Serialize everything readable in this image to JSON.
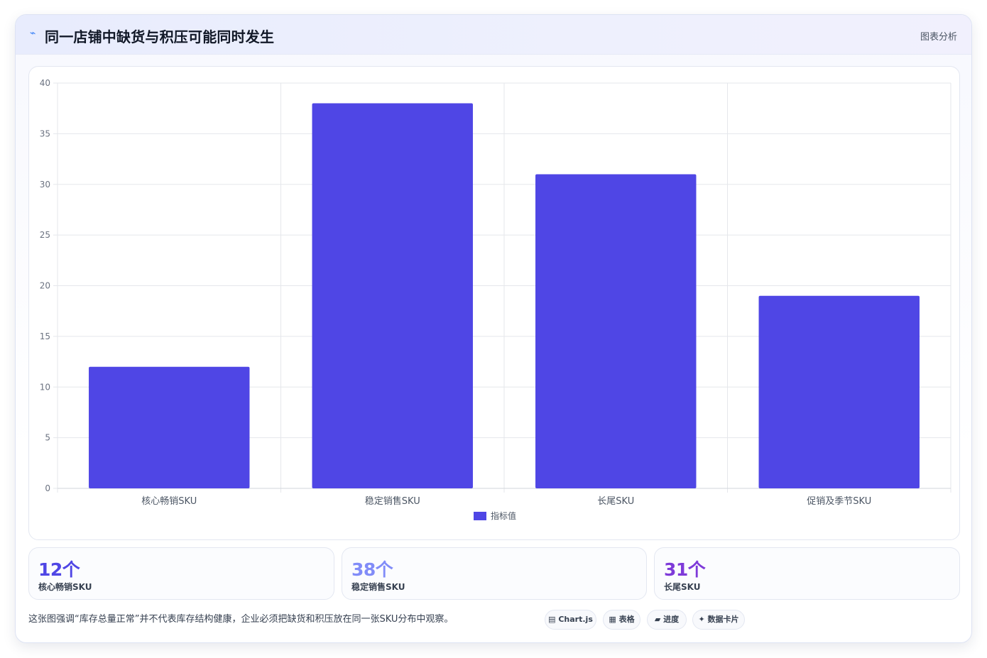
{
  "header": {
    "icon": "chart-line-icon",
    "title": "同一店铺中缺货与积压可能同时发生",
    "tag": "图表分析"
  },
  "chart_data": {
    "type": "bar",
    "categories": [
      "核心畅销SKU",
      "稳定销售SKU",
      "长尾SKU",
      "促销及季节SKU"
    ],
    "series": [
      {
        "name": "指标值",
        "values": [
          12,
          38,
          31,
          19
        ],
        "color": "#4f46e5"
      }
    ],
    "ylim": [
      0,
      40
    ],
    "yticks": [
      0,
      5,
      10,
      15,
      20,
      25,
      30,
      35,
      40
    ],
    "grid": true,
    "legend": "bottom"
  },
  "stats": [
    {
      "value": "12个",
      "label": "核心畅销SKU",
      "color": "#4f46e5"
    },
    {
      "value": "38个",
      "label": "稳定销售SKU",
      "color": "#818cf8"
    },
    {
      "value": "31个",
      "label": "长尾SKU",
      "color": "#7e3ad9"
    }
  ],
  "footnote": "这张图强调“库存总量正常”并不代表库存结构健康，企业必须把缺货和积压放在同一张SKU分布中观察。",
  "chips": [
    {
      "icon": "chart-icon",
      "glyph": "▤",
      "label": "Chart.js"
    },
    {
      "icon": "table-icon",
      "glyph": "▦",
      "label": "表格"
    },
    {
      "icon": "progress-icon",
      "glyph": "▰",
      "label": "进度"
    },
    {
      "icon": "sparkle-icon",
      "glyph": "✦",
      "label": "数据卡片"
    }
  ]
}
